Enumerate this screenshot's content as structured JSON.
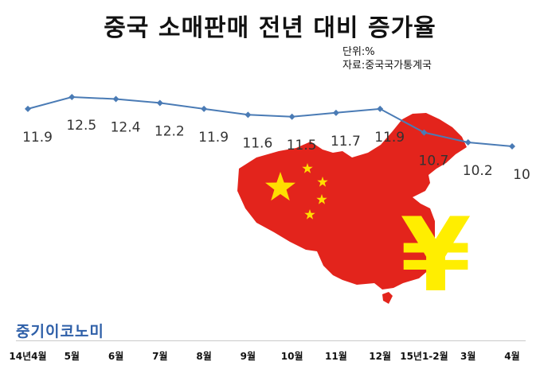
{
  "title": "중국 소매판매 전년 대비 증가율",
  "unit": "단위:%",
  "source": "자료:중국국가통계국",
  "brand": "중기이코노미",
  "colors": {
    "line": "#4a7bb5",
    "map": "#e3241c",
    "stars": "#ffde00",
    "yen": "#ffee00",
    "brand": "#2e5fa8"
  },
  "icons": [
    "china-map-icon",
    "yen-sign-icon"
  ],
  "yen_symbol": "¥",
  "chart_data": {
    "type": "line",
    "title": "중국 소매판매 전년 대비 증가율",
    "categories": [
      "14년4월",
      "5월",
      "6월",
      "7월",
      "8월",
      "9월",
      "10월",
      "11월",
      "12월",
      "15년1-2월",
      "3월",
      "4월"
    ],
    "values": [
      11.9,
      12.5,
      12.4,
      12.2,
      11.9,
      11.6,
      11.5,
      11.7,
      11.9,
      10.7,
      10.2,
      10
    ],
    "xlabel": "",
    "ylabel": "",
    "grid": false,
    "legend": "none"
  }
}
